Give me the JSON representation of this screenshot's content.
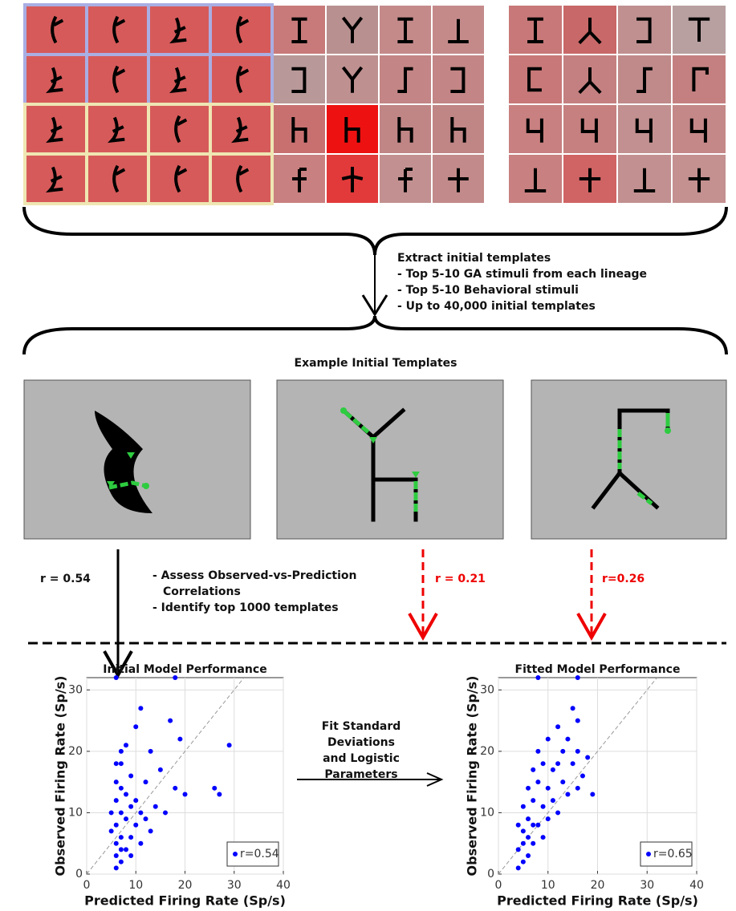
{
  "extract": {
    "title": "Extract initial templates",
    "items": [
      "- Top 5-10 GA stimuli from each lineage",
      "- Top 5-10 Behavioral stimuli",
      "- Up to 40,000 initial templates"
    ]
  },
  "examples": {
    "title": "Example Initial Templates"
  },
  "selection": {
    "kept": "r = 0.54",
    "rejected": [
      "r = 0.21",
      "r=0.26"
    ],
    "lines": [
      "- Assess Observed-vs-Prediction",
      "Correlations",
      "- Identify top 1000 templates"
    ]
  },
  "fit": {
    "lines": [
      "Fit Standard",
      "Deviations",
      "and Logistic",
      "Parameters"
    ]
  },
  "chart_data": [
    {
      "type": "scatter",
      "title": "Initial Model Performance",
      "x_label": "Predicted Firing Rate (Sp/s)",
      "y_label": "Observed Firing Rate (Sp/s)",
      "xlim": [
        0,
        40
      ],
      "ylim": [
        0,
        32
      ],
      "xticks": [
        0,
        10,
        20,
        30,
        40
      ],
      "yticks": [
        0,
        10,
        20,
        30
      ],
      "grid": true,
      "legend": "lower right",
      "series": [
        {
          "name": "r=0.54",
          "color": "#0000ff",
          "x": [
            6,
            6,
            6,
            6,
            6,
            6,
            7,
            7,
            7,
            7,
            7,
            7,
            8,
            8,
            8,
            8,
            9,
            9,
            9,
            10,
            10,
            10,
            11,
            11,
            11,
            12,
            12,
            13,
            13,
            14,
            15,
            16,
            17,
            18,
            19,
            20,
            26,
            27,
            29,
            6,
            18,
            5,
            5,
            6,
            7,
            9
          ],
          "y": [
            1,
            3,
            5,
            8,
            12,
            15,
            2,
            6,
            10,
            14,
            18,
            20,
            4,
            9,
            13,
            21,
            6,
            11,
            16,
            8,
            12,
            24,
            5,
            10,
            27,
            9,
            15,
            7,
            20,
            11,
            17,
            10,
            25,
            14,
            22,
            13,
            14,
            13,
            21,
            32,
            32,
            7,
            10,
            18,
            4,
            3
          ]
        }
      ]
    },
    {
      "type": "scatter",
      "title": "Fitted Model Performance",
      "x_label": "Predicted Firing Rate (Sp/s)",
      "y_label": "Observed Firing Rate (Sp/s)",
      "xlim": [
        0,
        40
      ],
      "ylim": [
        0,
        32
      ],
      "xticks": [
        0,
        10,
        20,
        30,
        40
      ],
      "yticks": [
        0,
        10,
        20,
        30
      ],
      "grid": true,
      "legend": "lower right",
      "series": [
        {
          "name": "r=0.65",
          "color": "#0000ff",
          "x": [
            4,
            4,
            5,
            5,
            5,
            6,
            6,
            6,
            7,
            7,
            7,
            8,
            8,
            8,
            9,
            9,
            9,
            10,
            10,
            10,
            11,
            11,
            12,
            12,
            13,
            13,
            14,
            14,
            15,
            15,
            16,
            16,
            16,
            17,
            18,
            19,
            8,
            16,
            5,
            6,
            7,
            12,
            4
          ],
          "y": [
            1,
            4,
            2,
            7,
            11,
            3,
            9,
            14,
            5,
            12,
            17,
            8,
            15,
            20,
            6,
            11,
            18,
            9,
            14,
            22,
            12,
            17,
            10,
            24,
            15,
            20,
            13,
            22,
            18,
            27,
            14,
            20,
            25,
            16,
            19,
            13,
            32,
            32,
            5,
            6,
            8,
            18,
            8
          ]
        }
      ]
    }
  ]
}
